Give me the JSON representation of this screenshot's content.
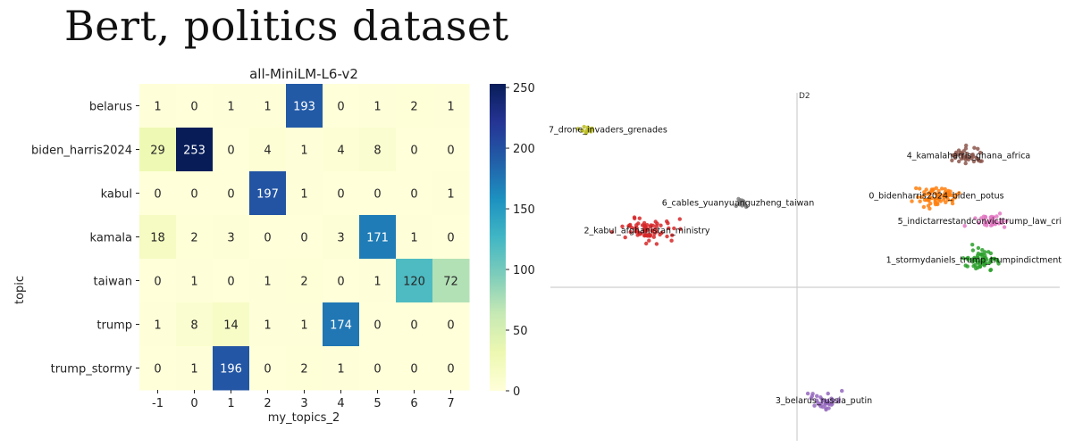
{
  "page": {
    "title": "Bert, politics dataset"
  },
  "chart_data": [
    {
      "type": "heatmap",
      "title": "all-MiniLM-L6-v2",
      "xlabel": "my_topics_2",
      "ylabel": "topic",
      "x_categories": [
        "-1",
        "0",
        "1",
        "2",
        "3",
        "4",
        "5",
        "6",
        "7"
      ],
      "y_categories": [
        "belarus",
        "biden_harris2024",
        "kabul",
        "kamala",
        "taiwan",
        "trump",
        "trump_stormy"
      ],
      "values": [
        [
          1,
          0,
          1,
          1,
          193,
          0,
          1,
          2,
          1
        ],
        [
          29,
          253,
          0,
          4,
          1,
          4,
          8,
          0,
          0
        ],
        [
          0,
          0,
          0,
          197,
          1,
          0,
          0,
          0,
          1
        ],
        [
          18,
          2,
          3,
          0,
          0,
          3,
          171,
          1,
          0
        ],
        [
          0,
          1,
          0,
          1,
          2,
          0,
          1,
          120,
          72
        ],
        [
          1,
          8,
          14,
          1,
          1,
          174,
          0,
          0,
          0
        ],
        [
          0,
          1,
          196,
          0,
          2,
          1,
          0,
          0,
          0
        ]
      ],
      "colorbar": {
        "min": 0,
        "max": 253,
        "ticks": [
          0,
          50,
          100,
          150,
          200,
          250
        ],
        "colormap": "YlGnBu"
      }
    },
    {
      "type": "scatter",
      "axis_labels": {
        "y": "D2"
      },
      "clusters": [
        {
          "label": "7_drone_invaders_grenades",
          "color": "#bcbd22",
          "x": -0.78,
          "y": 0.86,
          "n": 14,
          "spread": 0.018
        },
        {
          "label": "4_kamalaharris_ghana_africa",
          "color": "#8c564b",
          "x": 0.64,
          "y": 0.72,
          "n": 40,
          "spread": 0.03
        },
        {
          "label": "0_bidenharris2024_biden_potus",
          "color": "#ff7f0e",
          "x": 0.52,
          "y": 0.5,
          "n": 70,
          "spread": 0.04
        },
        {
          "label": "6_cables_yuanyuanguzheng_taiwan",
          "color": "#7f7f7f",
          "x": -0.22,
          "y": 0.46,
          "n": 14,
          "spread": 0.02
        },
        {
          "label": "5_indictarrestandconvicttrump_law_cri",
          "color": "#e377c2",
          "x": 0.73,
          "y": 0.36,
          "n": 40,
          "spread": 0.03
        },
        {
          "label": "2_kabul_afghanistan_ministry",
          "color": "#d62728",
          "x": -0.56,
          "y": 0.31,
          "n": 70,
          "spread": 0.045
        },
        {
          "label": "1_stormydaniels_trump_trumpindictment",
          "color": "#2ca02c",
          "x": 0.69,
          "y": 0.15,
          "n": 60,
          "spread": 0.035
        },
        {
          "label": "3_belarus_russia_putin",
          "color": "#9467bd",
          "x": 0.1,
          "y": -0.62,
          "n": 35,
          "spread": 0.03
        }
      ]
    }
  ]
}
